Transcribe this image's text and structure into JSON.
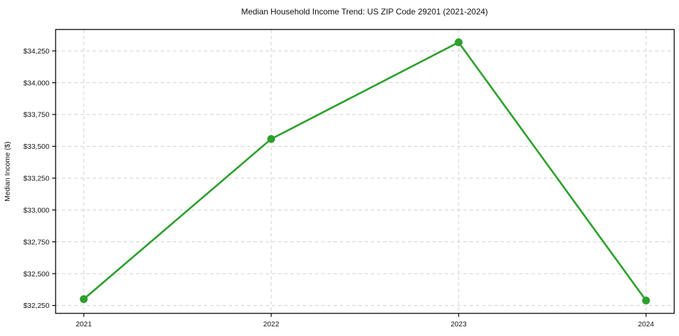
{
  "chart_data": {
    "type": "line",
    "title": "Median Household Income Trend: US ZIP Code 29201 (2021-2024)",
    "xlabel": "",
    "ylabel": "Median Income ($)",
    "categories": [
      "2021",
      "2022",
      "2023",
      "2024"
    ],
    "values": [
      32300,
      33558,
      34317,
      32289
    ],
    "ytick_values": [
      32250,
      32500,
      32750,
      33000,
      33250,
      33500,
      33750,
      34000,
      34250
    ],
    "ytick_labels": [
      "$32,250",
      "$32,500",
      "$32,750",
      "$33,000",
      "$33,250",
      "$33,500",
      "$33,750",
      "$34,000",
      "$34,250"
    ],
    "ylim": [
      32188,
      34418
    ],
    "grid": true,
    "grid_style": "dashed",
    "legend": false,
    "marker": "circle",
    "colors": {
      "line": "#2ca02c",
      "marker": "#2ca02c",
      "grid": "#cfcfcf",
      "axis": "#000000",
      "text": "#111111",
      "background": "#ffffff"
    }
  }
}
